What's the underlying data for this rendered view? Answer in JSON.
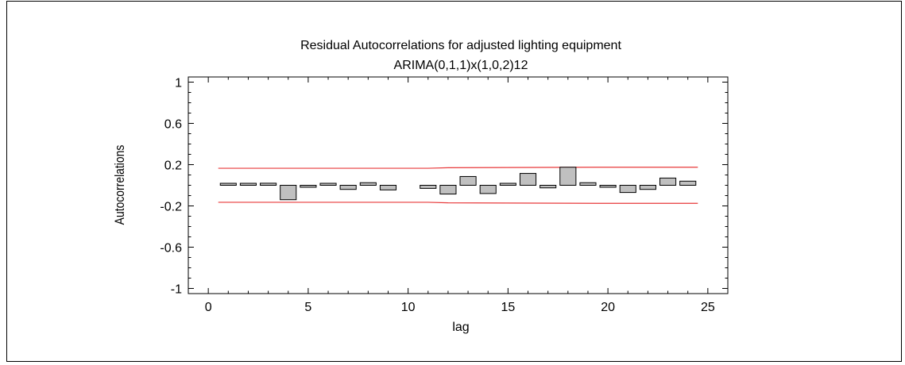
{
  "chart_data": {
    "type": "bar",
    "title": "Residual Autocorrelations for adjusted lighting equipment",
    "subtitle": "ARIMA(0,1,1)x(1,0,2)12",
    "xlabel": "lag",
    "ylabel": "Autocorrelations",
    "xlim": [
      -1,
      26
    ],
    "ylim": [
      -1.05,
      1.05
    ],
    "x_ticks": [
      0,
      5,
      10,
      15,
      20,
      25
    ],
    "y_ticks": [
      1,
      0.6,
      0.2,
      -0.2,
      -0.6,
      -1
    ],
    "y_tick_labels": [
      "1",
      "0.6",
      "0.2",
      "-0.2",
      "-0.6",
      "-1"
    ],
    "grid": false,
    "bar_color": "#c0c0c0",
    "limit_color": "#e8393a",
    "series": [
      {
        "lags": [
          1,
          2,
          3,
          4,
          5,
          6,
          7,
          8,
          9,
          10,
          11,
          12,
          13,
          14,
          15,
          16,
          17,
          18,
          19,
          20,
          21,
          22,
          23,
          24
        ],
        "values": [
          0.012,
          0.018,
          0.02,
          -0.14,
          -0.006,
          0.0,
          -0.04,
          0.025,
          -0.045,
          null,
          -0.03,
          -0.085,
          0.085,
          -0.08,
          0.012,
          0.115,
          -0.025,
          0.175,
          0.025,
          -0.01,
          -0.07,
          -0.04,
          0.07,
          0.04
        ]
      }
    ],
    "limits": {
      "upper": [
        [
          0.5,
          0.165
        ],
        [
          11,
          0.165
        ],
        [
          12,
          0.17
        ],
        [
          19.5,
          0.175
        ],
        [
          24.5,
          0.175
        ]
      ],
      "lower": [
        [
          0.5,
          -0.165
        ],
        [
          11,
          -0.165
        ],
        [
          12,
          -0.17
        ],
        [
          19.5,
          -0.175
        ],
        [
          24.5,
          -0.175
        ]
      ]
    }
  }
}
